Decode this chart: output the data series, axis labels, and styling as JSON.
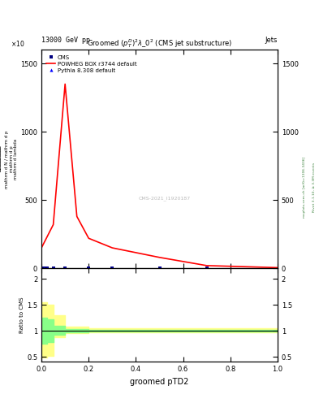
{
  "title": "Groomed $(p_T^D)^2\\lambda\\_0^2$ (CMS jet substructure)",
  "top_left_label": "13000 GeV pp",
  "top_right_label": "Jets",
  "right_label1": "mcplots.cern.ch [arXiv:1306.3436]",
  "right_label2": "Rivet 3.1.10, ≥ 3.3M events",
  "watermark": "CMS-2021_I1920187",
  "xlabel": "groomed pTD2",
  "ylabel_ratio": "Ratio to CMS",
  "xlim": [
    0.0,
    1.0
  ],
  "ylim_main": [
    0,
    1600
  ],
  "ylim_ratio": [
    0.4,
    2.2
  ],
  "yticks_main": [
    0,
    500,
    1000,
    1500
  ],
  "yticks_ratio": [
    0.5,
    1.0,
    1.5,
    2.0
  ],
  "powheg_x": [
    0.0,
    0.05,
    0.1,
    0.15,
    0.2,
    0.3,
    0.5,
    0.7,
    1.0
  ],
  "powheg_y": [
    150,
    320,
    1350,
    380,
    220,
    150,
    80,
    20,
    5
  ],
  "cms_x": [
    0.01,
    0.025,
    0.05,
    0.1,
    0.2,
    0.3,
    0.5,
    0.7
  ],
  "pythia_x": [
    0.01,
    0.025,
    0.05,
    0.1,
    0.2,
    0.3,
    0.5,
    0.7
  ],
  "ratio_yellow_x": [
    0.0,
    0.025,
    0.05,
    0.1,
    0.2,
    1.0
  ],
  "ratio_yellow_ylow": [
    0.48,
    0.52,
    0.88,
    0.95,
    0.97,
    0.97
  ],
  "ratio_yellow_yhigh": [
    1.55,
    1.5,
    1.3,
    1.08,
    1.05,
    1.05
  ],
  "ratio_green_x": [
    0.0,
    0.025,
    0.05,
    0.1,
    0.2,
    1.0
  ],
  "ratio_green_ylow": [
    0.75,
    0.78,
    0.93,
    0.97,
    0.98,
    0.98
  ],
  "ratio_green_yhigh": [
    1.25,
    1.22,
    1.1,
    1.03,
    1.02,
    1.02
  ],
  "cms_color": "#000080",
  "powheg_color": "#ff0000",
  "pythia_color": "#0000ff",
  "yellow_color": "#ffff88",
  "green_color": "#88ff88",
  "bg_color": "#ffffff"
}
